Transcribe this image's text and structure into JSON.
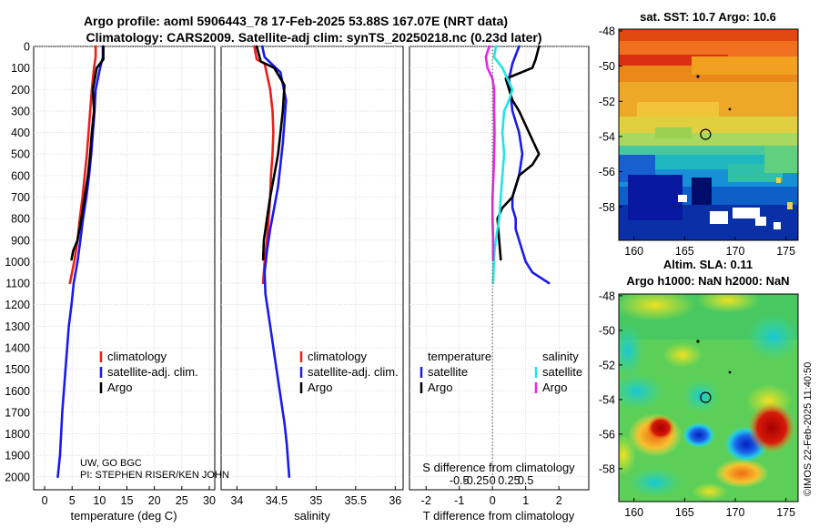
{
  "header": {
    "line1": "Argo profile: aoml 5906443_78 17-Feb-2025 53.88S 167.07E (NRT data)",
    "line2": "Climatology: CARS2009. Satellite-adj clim: synTS_20250218.nc (0.23d later)"
  },
  "colors": {
    "climatology": "#ee1c1c",
    "satellite": "#1a1aee",
    "argo": "#000000",
    "sat_salinity": "#22e5e5",
    "argo_salinity": "#ee22ee"
  },
  "depth_ticks": [
    "0",
    "100",
    "200",
    "300",
    "400",
    "500",
    "600",
    "700",
    "800",
    "900",
    "1000",
    "1100",
    "1200",
    "1300",
    "1400",
    "1500",
    "1600",
    "1700",
    "1800",
    "1900",
    "2000"
  ],
  "chart_data": [
    {
      "type": "line",
      "id": "temperature",
      "xlabel": "temperature (deg C)",
      "ylabel": "depth",
      "xlim": [
        -2,
        31
      ],
      "ylim": [
        2060,
        0
      ],
      "xticks": [
        "0",
        "5",
        "10",
        "15",
        "20",
        "25",
        "30"
      ],
      "xtick_values": [
        0,
        5,
        10,
        15,
        20,
        25,
        30
      ],
      "legend": [
        "climatology",
        "satellite-adj. clim.",
        "Argo"
      ],
      "series": [
        {
          "name": "climatology",
          "color_key": "climatology",
          "x": [
            9.3,
            9.3,
            9.0,
            8.6,
            8.3,
            8.0,
            7.7,
            7.3,
            6.9,
            6.4,
            6.0,
            5.4,
            4.6
          ],
          "y": [
            0,
            50,
            100,
            200,
            300,
            400,
            500,
            600,
            700,
            800,
            900,
            1000,
            1100
          ]
        },
        {
          "name": "satellite-adj. clim.",
          "color_key": "satellite",
          "x": [
            10.6,
            10.6,
            10.1,
            9.3,
            9.1,
            8.8,
            8.5,
            8.1,
            7.6,
            7.0,
            6.5,
            6.0,
            5.3,
            4.9,
            4.4,
            4.1,
            3.8,
            3.5,
            3.2,
            3.0,
            2.8,
            2.6,
            2.4
          ],
          "y": [
            0,
            50,
            100,
            200,
            300,
            400,
            500,
            600,
            700,
            800,
            900,
            1000,
            1100,
            1200,
            1300,
            1400,
            1500,
            1600,
            1700,
            1800,
            1900,
            1950,
            2000
          ]
        },
        {
          "name": "Argo",
          "color_key": "argo",
          "x": [
            10.7,
            10.7,
            9.5,
            8.8,
            9.0,
            8.6,
            8.3,
            7.9,
            7.3,
            6.7,
            6.0,
            5.2,
            4.9
          ],
          "y": [
            0,
            60,
            100,
            200,
            300,
            400,
            500,
            600,
            700,
            800,
            900,
            950,
            990
          ]
        }
      ]
    },
    {
      "type": "line",
      "id": "salinity",
      "xlabel": "salinity",
      "xlim": [
        33.8,
        36.1
      ],
      "ylim": [
        2060,
        0
      ],
      "xticks": [
        "34",
        "34.5",
        "35",
        "35.5",
        "36"
      ],
      "xtick_values": [
        34,
        34.5,
        35,
        35.5,
        36
      ],
      "legend": [
        "climatology",
        "satellite-adj. clim.",
        "Argo"
      ],
      "series": [
        {
          "name": "climatology",
          "color_key": "climatology",
          "x": [
            34.22,
            34.25,
            34.35,
            34.42,
            34.45,
            34.46,
            34.45,
            34.43,
            34.42,
            34.4,
            34.38,
            34.35,
            34.33
          ],
          "y": [
            0,
            60,
            80,
            200,
            300,
            400,
            500,
            600,
            700,
            800,
            900,
            1000,
            1100
          ]
        },
        {
          "name": "satellite-adj. clim.",
          "color_key": "satellite",
          "x": [
            34.32,
            34.35,
            34.55,
            34.62,
            34.6,
            34.58,
            34.55,
            34.52,
            34.47,
            34.42,
            34.38,
            34.35,
            34.36,
            34.4,
            34.44,
            34.48,
            34.52,
            34.56,
            34.6,
            34.63,
            34.66
          ],
          "y": [
            0,
            50,
            120,
            250,
            350,
            450,
            550,
            650,
            750,
            850,
            950,
            1050,
            1150,
            1250,
            1350,
            1450,
            1550,
            1650,
            1750,
            1850,
            2000
          ]
        },
        {
          "name": "Argo",
          "color_key": "argo",
          "x": [
            34.25,
            34.3,
            34.47,
            34.6,
            34.58,
            34.55,
            34.52,
            34.47,
            34.42,
            34.38,
            34.34,
            34.33
          ],
          "y": [
            0,
            70,
            100,
            180,
            300,
            400,
            500,
            600,
            700,
            800,
            900,
            990
          ]
        }
      ]
    },
    {
      "type": "line",
      "id": "difference",
      "xlabel": "T difference from climatology",
      "top_axis_label": "S difference from climatology",
      "xlim": [
        -2.5,
        2.9
      ],
      "ylim": [
        2060,
        0
      ],
      "xticks": [
        "-2",
        "-1",
        "0",
        "1",
        "2"
      ],
      "xtick_values": [
        -2,
        -1,
        0,
        1,
        2
      ],
      "top_ticks": [
        "-0.5",
        "-0.25",
        "0",
        "0.25",
        "0.5"
      ],
      "top_tick_values": [
        -1,
        -0.5,
        0,
        0.5,
        1
      ],
      "legend_headers": [
        "temperature",
        "salinity"
      ],
      "legend_left": [
        "satellite",
        "Argo"
      ],
      "legend_right": [
        "satellite",
        "Argo"
      ],
      "series": [
        {
          "name": "T satellite",
          "color_key": "satellite",
          "x": [
            0.8,
            0.6,
            0.5,
            0.6,
            0.8,
            0.9,
            0.8,
            0.7,
            0.6,
            0.6,
            0.7,
            0.7,
            0.8,
            0.9,
            1.0,
            1.2,
            1.7
          ],
          "y": [
            0,
            80,
            150,
            300,
            400,
            500,
            600,
            650,
            700,
            750,
            800,
            850,
            900,
            950,
            1000,
            1050,
            1100
          ]
        },
        {
          "name": "T Argo",
          "color_key": "argo",
          "x": [
            1.4,
            1.3,
            1.2,
            0.4,
            0.6,
            0.8,
            1.1,
            1.4,
            1.2,
            0.8,
            0.6,
            0.3,
            0.15,
            0.2,
            0.25
          ],
          "y": [
            0,
            60,
            100,
            150,
            250,
            300,
            400,
            500,
            550,
            600,
            700,
            750,
            800,
            900,
            990
          ]
        },
        {
          "name": "S satellite",
          "color_key": "sat_salinity",
          "x": [
            0.1,
            0.05,
            0.3,
            0.6,
            0.5,
            0.35,
            0.3,
            0.35,
            0.3,
            0.25,
            0.2,
            0.15,
            0.1,
            0.06,
            0.04,
            0.02
          ],
          "y": [
            0,
            50,
            100,
            200,
            250,
            300,
            400,
            500,
            600,
            700,
            800,
            850,
            900,
            950,
            1000,
            1100
          ]
        },
        {
          "name": "S Argo",
          "color_key": "argo_salinity",
          "x": [
            -0.1,
            -0.2,
            -0.15,
            0.0,
            0.05,
            0.05,
            0.06,
            0.05,
            0.03,
            0.0,
            0.0,
            0.02,
            0.02
          ],
          "y": [
            0,
            50,
            100,
            150,
            200,
            300,
            400,
            500,
            600,
            700,
            800,
            900,
            990
          ]
        }
      ]
    },
    {
      "type": "heatmap",
      "id": "sst",
      "title": "sat. SST: 10.7 Argo: 10.6",
      "xticks": [
        "160",
        "165",
        "170",
        "175"
      ],
      "xtick_values": [
        160,
        165,
        170,
        175
      ],
      "yticks": [
        "-48",
        "-50",
        "-52",
        "-54",
        "-56",
        "-58"
      ],
      "ytick_values": [
        -48,
        -50,
        -52,
        -54,
        -56,
        -58
      ],
      "xlim": [
        158.5,
        176.2
      ],
      "ylim": [
        -59.9,
        -47.9
      ],
      "marker": {
        "lon": 167.07,
        "lat": -53.88
      }
    },
    {
      "type": "heatmap",
      "id": "sla",
      "title_line1": "Altim. SLA: 0.11",
      "title_line2": "Argo h1000: NaN h2000: NaN",
      "xticks": [
        "160",
        "165",
        "170",
        "175"
      ],
      "xtick_values": [
        160,
        165,
        170,
        175
      ],
      "yticks": [
        "-48",
        "-50",
        "-52",
        "-54",
        "-56",
        "-58"
      ],
      "ytick_values": [
        -48,
        -50,
        -52,
        -54,
        -56,
        -58
      ],
      "xlim": [
        158.5,
        176.2
      ],
      "ylim": [
        -59.9,
        -47.9
      ],
      "marker": {
        "lon": 167.07,
        "lat": -53.88
      }
    }
  ],
  "notes": {
    "institution": "UW, GO BGC",
    "pi": "PI: STEPHEN RISER/KEN JOHN",
    "copyright": "©IMOS 22-Feb-2025 11:40:50"
  }
}
